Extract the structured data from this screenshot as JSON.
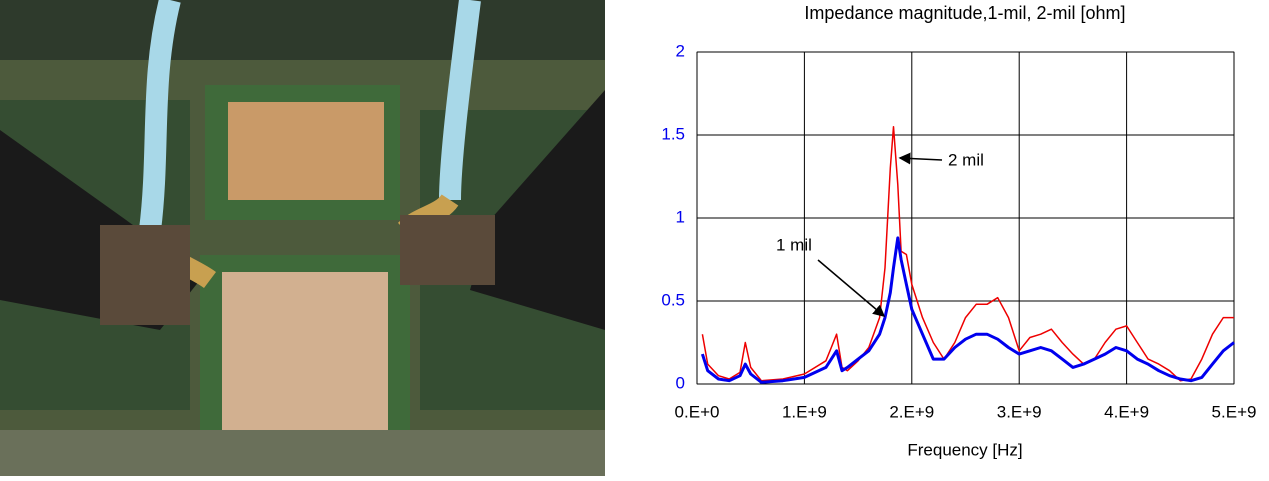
{
  "chart_data": {
    "type": "line",
    "title": "Impedance magnitude,1-mil, 2-mil [ohm]",
    "xlabel": "Frequency [Hz]",
    "x": [
      50000000,
      100000000,
      200000000,
      300000000,
      400000000,
      450000000,
      500000000,
      600000000,
      800000000,
      1000000000,
      1200000000,
      1250000000,
      1300000000,
      1350000000,
      1400000000,
      1500000000,
      1600000000,
      1700000000,
      1750000000,
      1800000000,
      1830000000,
      1870000000,
      1900000000,
      1950000000,
      2000000000,
      2100000000,
      2200000000,
      2300000000,
      2400000000,
      2500000000,
      2600000000,
      2700000000,
      2800000000,
      2900000000,
      3000000000,
      3100000000,
      3200000000,
      3300000000,
      3400000000,
      3500000000,
      3600000000,
      3700000000,
      3800000000,
      3900000000,
      4000000000,
      4100000000,
      4200000000,
      4300000000,
      4400000000,
      4500000000,
      4600000000,
      4700000000,
      4800000000,
      4900000000,
      5000000000
    ],
    "series": [
      {
        "name": "1 mil",
        "color": "#0000ee",
        "values": [
          0.18,
          0.08,
          0.03,
          0.02,
          0.05,
          0.12,
          0.06,
          0.01,
          0.02,
          0.04,
          0.1,
          0.15,
          0.2,
          0.08,
          0.1,
          0.15,
          0.2,
          0.3,
          0.4,
          0.55,
          0.7,
          0.88,
          0.75,
          0.6,
          0.45,
          0.3,
          0.15,
          0.15,
          0.22,
          0.27,
          0.3,
          0.3,
          0.27,
          0.22,
          0.18,
          0.2,
          0.22,
          0.2,
          0.15,
          0.1,
          0.12,
          0.15,
          0.18,
          0.22,
          0.2,
          0.15,
          0.12,
          0.08,
          0.05,
          0.03,
          0.02,
          0.04,
          0.12,
          0.2,
          0.25
        ]
      },
      {
        "name": "2 mil",
        "color": "#ee0000",
        "values": [
          0.3,
          0.12,
          0.05,
          0.03,
          0.07,
          0.25,
          0.1,
          0.02,
          0.03,
          0.06,
          0.14,
          0.22,
          0.3,
          0.1,
          0.08,
          0.14,
          0.22,
          0.4,
          0.7,
          1.3,
          1.55,
          1.2,
          0.8,
          0.78,
          0.6,
          0.4,
          0.25,
          0.15,
          0.25,
          0.4,
          0.48,
          0.48,
          0.52,
          0.4,
          0.2,
          0.28,
          0.3,
          0.33,
          0.25,
          0.18,
          0.12,
          0.15,
          0.25,
          0.33,
          0.35,
          0.25,
          0.15,
          0.12,
          0.08,
          0.02,
          0.03,
          0.15,
          0.3,
          0.4,
          0.4
        ]
      }
    ],
    "xlim": [
      0,
      5000000000
    ],
    "xticks": [
      {
        "value": 0,
        "label": "0.E+0"
      },
      {
        "value": 1000000000,
        "label": "1.E+9"
      },
      {
        "value": 2000000000,
        "label": "2.E+9"
      },
      {
        "value": 3000000000,
        "label": "3.E+9"
      },
      {
        "value": 4000000000,
        "label": "4.E+9"
      },
      {
        "value": 5000000000,
        "label": "5.E+9"
      }
    ],
    "ylim": [
      0,
      2
    ],
    "yticks": [
      0,
      0.5,
      1,
      1.5,
      2
    ],
    "grid": true
  }
}
